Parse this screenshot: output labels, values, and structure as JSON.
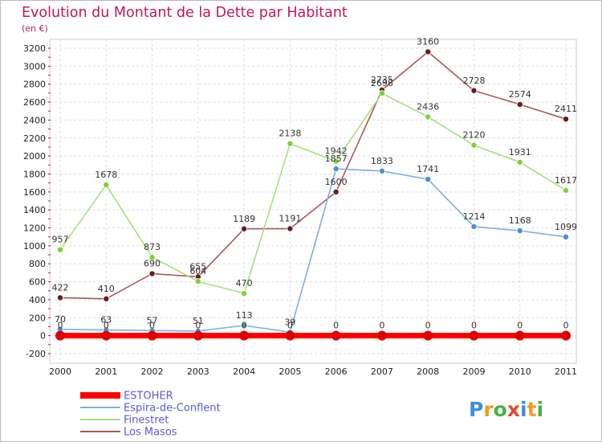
{
  "chart_data": {
    "type": "line",
    "title": "Evolution du Montant de la Dette par Habitant",
    "subtitle": "(en €)",
    "x": [
      "2000",
      "2001",
      "2002",
      "2003",
      "2004",
      "2005",
      "2006",
      "2007",
      "2008",
      "2009",
      "2010",
      "2011"
    ],
    "y_ticks": [
      -200,
      0,
      200,
      400,
      600,
      800,
      1000,
      1200,
      1400,
      1600,
      1800,
      2000,
      2200,
      2400,
      2600,
      2800,
      3000,
      3200
    ],
    "ylim": [
      -200,
      3200
    ],
    "grid": true,
    "legend": "bottom-left",
    "series": [
      {
        "name": "Los Masos",
        "color": "#6b1a1a",
        "line_color": "#a85a5a",
        "values": [
          422,
          410,
          690,
          655,
          1189,
          1191,
          1600,
          2735,
          3160,
          2728,
          2574,
          2411
        ]
      },
      {
        "name": "Finestret",
        "color": "#7dd23a",
        "line_color": "#a9e07a",
        "values": [
          957,
          1678,
          873,
          604,
          470,
          2138,
          1942,
          2698,
          2436,
          2120,
          1931,
          1617
        ]
      },
      {
        "name": "Espira-de-Conflent",
        "color": "#4a90d9",
        "line_color": "#7eaee0",
        "values": [
          70,
          63,
          57,
          51,
          113,
          39,
          1857,
          1833,
          1741,
          1214,
          1168,
          1099
        ]
      },
      {
        "name": "ESTOHER",
        "color": "#e00000",
        "line_color": "#ff0000",
        "values": [
          0,
          0,
          0,
          0,
          0,
          0,
          0,
          0,
          0,
          0,
          0,
          0
        ]
      }
    ],
    "legend_order": [
      "ESTOHER",
      "Espira-de-Conflent",
      "Finestret",
      "Los Masos"
    ]
  },
  "logo": {
    "letters": [
      "P",
      "r",
      "o",
      "x",
      "i",
      "t",
      "i"
    ],
    "colors": [
      "#3d8fd6",
      "#f29c1f",
      "#4cb043",
      "#e04a2a",
      "#3d8fd6",
      "#f29c1f",
      "#4cb043"
    ]
  }
}
